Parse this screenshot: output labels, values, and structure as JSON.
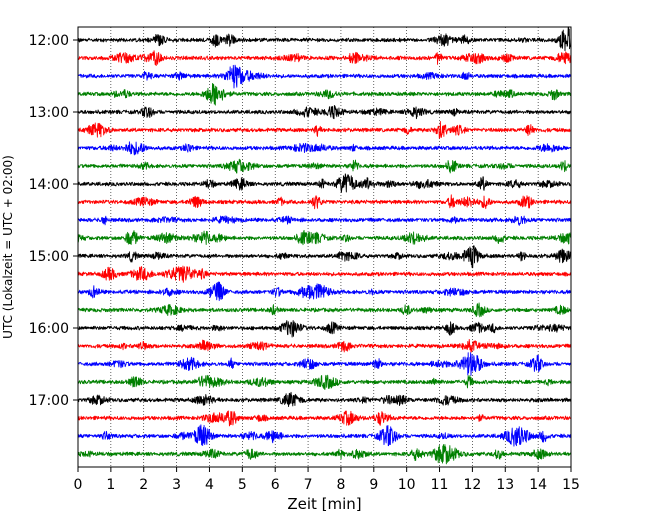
{
  "chart_data": {
    "type": "line",
    "title": "",
    "xlabel": "Zeit  [min]",
    "ylabel": "UTC (Lokalzeit = UTC + 02:00)",
    "xlim": [
      0,
      15
    ],
    "x_ticks": [
      "0",
      "1",
      "2",
      "3",
      "4",
      "5",
      "6",
      "7",
      "8",
      "9",
      "10",
      "11",
      "12",
      "13",
      "14",
      "15"
    ],
    "y_tick_labels": [
      "12:00",
      "13:00",
      "14:00",
      "15:00",
      "16:00",
      "17:00"
    ],
    "grid": "vertical dotted",
    "trace_interval_minutes": 15,
    "series": [
      {
        "start": "12:00",
        "color": "#000000"
      },
      {
        "start": "12:15",
        "color": "#ff0000"
      },
      {
        "start": "12:30",
        "color": "#0000ff"
      },
      {
        "start": "12:45",
        "color": "#008000"
      },
      {
        "start": "13:00",
        "color": "#000000"
      },
      {
        "start": "13:15",
        "color": "#ff0000"
      },
      {
        "start": "13:30",
        "color": "#0000ff"
      },
      {
        "start": "13:45",
        "color": "#008000"
      },
      {
        "start": "14:00",
        "color": "#000000"
      },
      {
        "start": "14:15",
        "color": "#ff0000"
      },
      {
        "start": "14:30",
        "color": "#0000ff"
      },
      {
        "start": "14:45",
        "color": "#008000"
      },
      {
        "start": "15:00",
        "color": "#000000"
      },
      {
        "start": "15:15",
        "color": "#ff0000"
      },
      {
        "start": "15:30",
        "color": "#0000ff"
      },
      {
        "start": "15:45",
        "color": "#008000"
      },
      {
        "start": "16:00",
        "color": "#000000"
      },
      {
        "start": "16:15",
        "color": "#ff0000"
      },
      {
        "start": "16:30",
        "color": "#0000ff"
      },
      {
        "start": "16:45",
        "color": "#008000"
      },
      {
        "start": "17:00",
        "color": "#000000"
      },
      {
        "start": "17:15",
        "color": "#ff0000"
      },
      {
        "start": "17:30",
        "color": "#0000ff"
      },
      {
        "start": "17:45",
        "color": "#008000"
      }
    ]
  }
}
